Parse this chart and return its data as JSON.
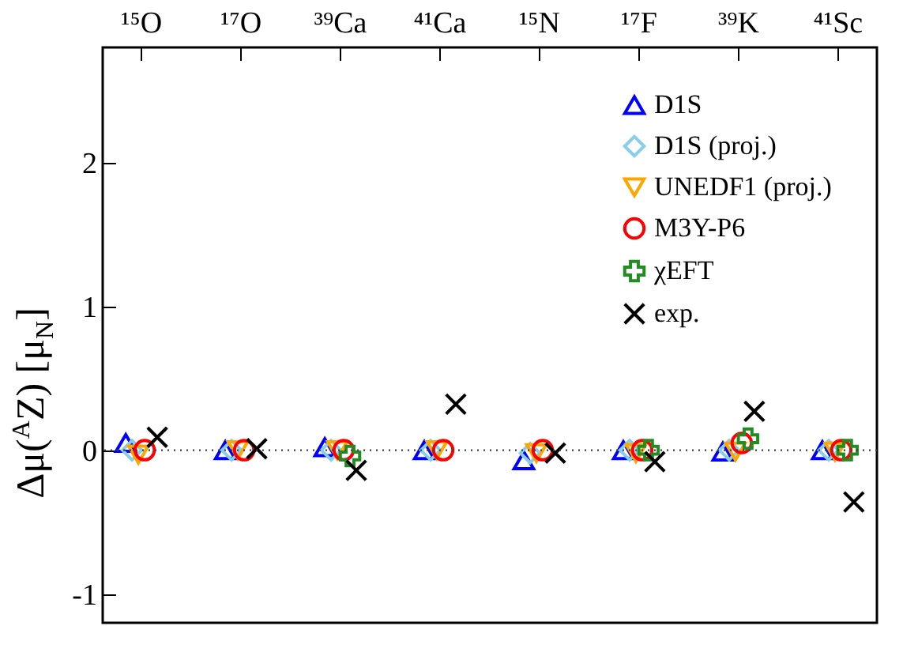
{
  "chart_data": {
    "type": "scatter",
    "ylabel": "Δμ($^{A}$Z) [μ$_{N}$]",
    "categories": [
      "¹⁵O",
      "¹⁷O",
      "³⁹Ca",
      "⁴¹Ca",
      "¹⁵N",
      "¹⁷F",
      "³⁹K",
      "⁴¹Sc"
    ],
    "series": [
      {
        "name": "D1S",
        "color": "#0000ff",
        "marker": "triangle",
        "values": [
          0.05,
          0.0,
          0.02,
          0.0,
          -0.07,
          0.0,
          -0.01,
          0.0
        ]
      },
      {
        "name": "D1S (proj.)",
        "color": "#87ceeb",
        "marker": "diamond",
        "values": [
          0.0,
          0.0,
          0.0,
          0.0,
          -0.02,
          0.0,
          0.0,
          0.0
        ]
      },
      {
        "name": "UNEDF1 (proj.)",
        "color": "#ffa500",
        "marker": "triangle-down",
        "values": [
          -0.03,
          0.0,
          0.0,
          0.0,
          -0.02,
          -0.02,
          -0.01,
          -0.01
        ]
      },
      {
        "name": "M3Y-P6",
        "color": "#ff0000",
        "marker": "circle",
        "values": [
          0.0,
          0.0,
          0.0,
          0.0,
          0.0,
          0.0,
          0.05,
          0.0
        ]
      },
      {
        "name": "χEFT",
        "color": "#228b22",
        "marker": "cross",
        "values": [
          null,
          null,
          -0.04,
          null,
          null,
          0.0,
          0.08,
          0.0
        ]
      },
      {
        "name": "exp.",
        "color": "#000000",
        "marker": "x",
        "values": [
          0.09,
          0.01,
          -0.14,
          0.32,
          -0.02,
          -0.08,
          0.27,
          -0.36
        ]
      }
    ],
    "ylim": [
      -1.2,
      2.8
    ],
    "yticks": [
      -1,
      0,
      1,
      2
    ],
    "ref_lines": [
      {
        "axis": "y",
        "value": 0,
        "line_style": "dotted",
        "color": "#404040"
      }
    ],
    "legend": "top right",
    "grid": false
  }
}
